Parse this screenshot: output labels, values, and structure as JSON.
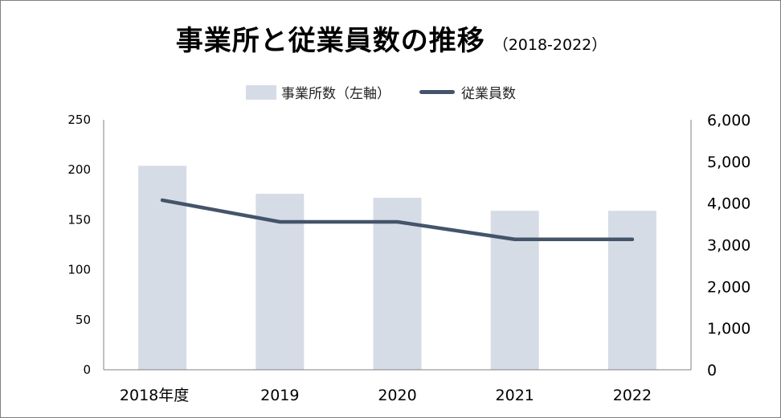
{
  "chart_data": {
    "type": "bar",
    "title": "事業所と従業員数の推移",
    "subtitle": "（2018-2022）",
    "categories": [
      "2018年度",
      "2019",
      "2020",
      "2021",
      "2022"
    ],
    "series": [
      {
        "name": "事業所数（左軸）",
        "type": "bar",
        "axis": "left",
        "color": "#d6dce5",
        "values": [
          204,
          176,
          172,
          159,
          159
        ]
      },
      {
        "name": "従業員数",
        "type": "line",
        "axis": "right",
        "color": "#44546a",
        "values": [
          4070,
          3550,
          3550,
          3130,
          3130
        ]
      }
    ],
    "left_axis": {
      "ylim": [
        0,
        250
      ],
      "ticks": [
        "0",
        "50",
        "100",
        "150",
        "200",
        "250"
      ]
    },
    "right_axis": {
      "ylim": [
        0,
        6000
      ],
      "ticks": [
        "0",
        "1,000",
        "2,000",
        "3,000",
        "4,000",
        "5,000",
        "6,000"
      ]
    },
    "legend_position": "top",
    "grid": false
  }
}
